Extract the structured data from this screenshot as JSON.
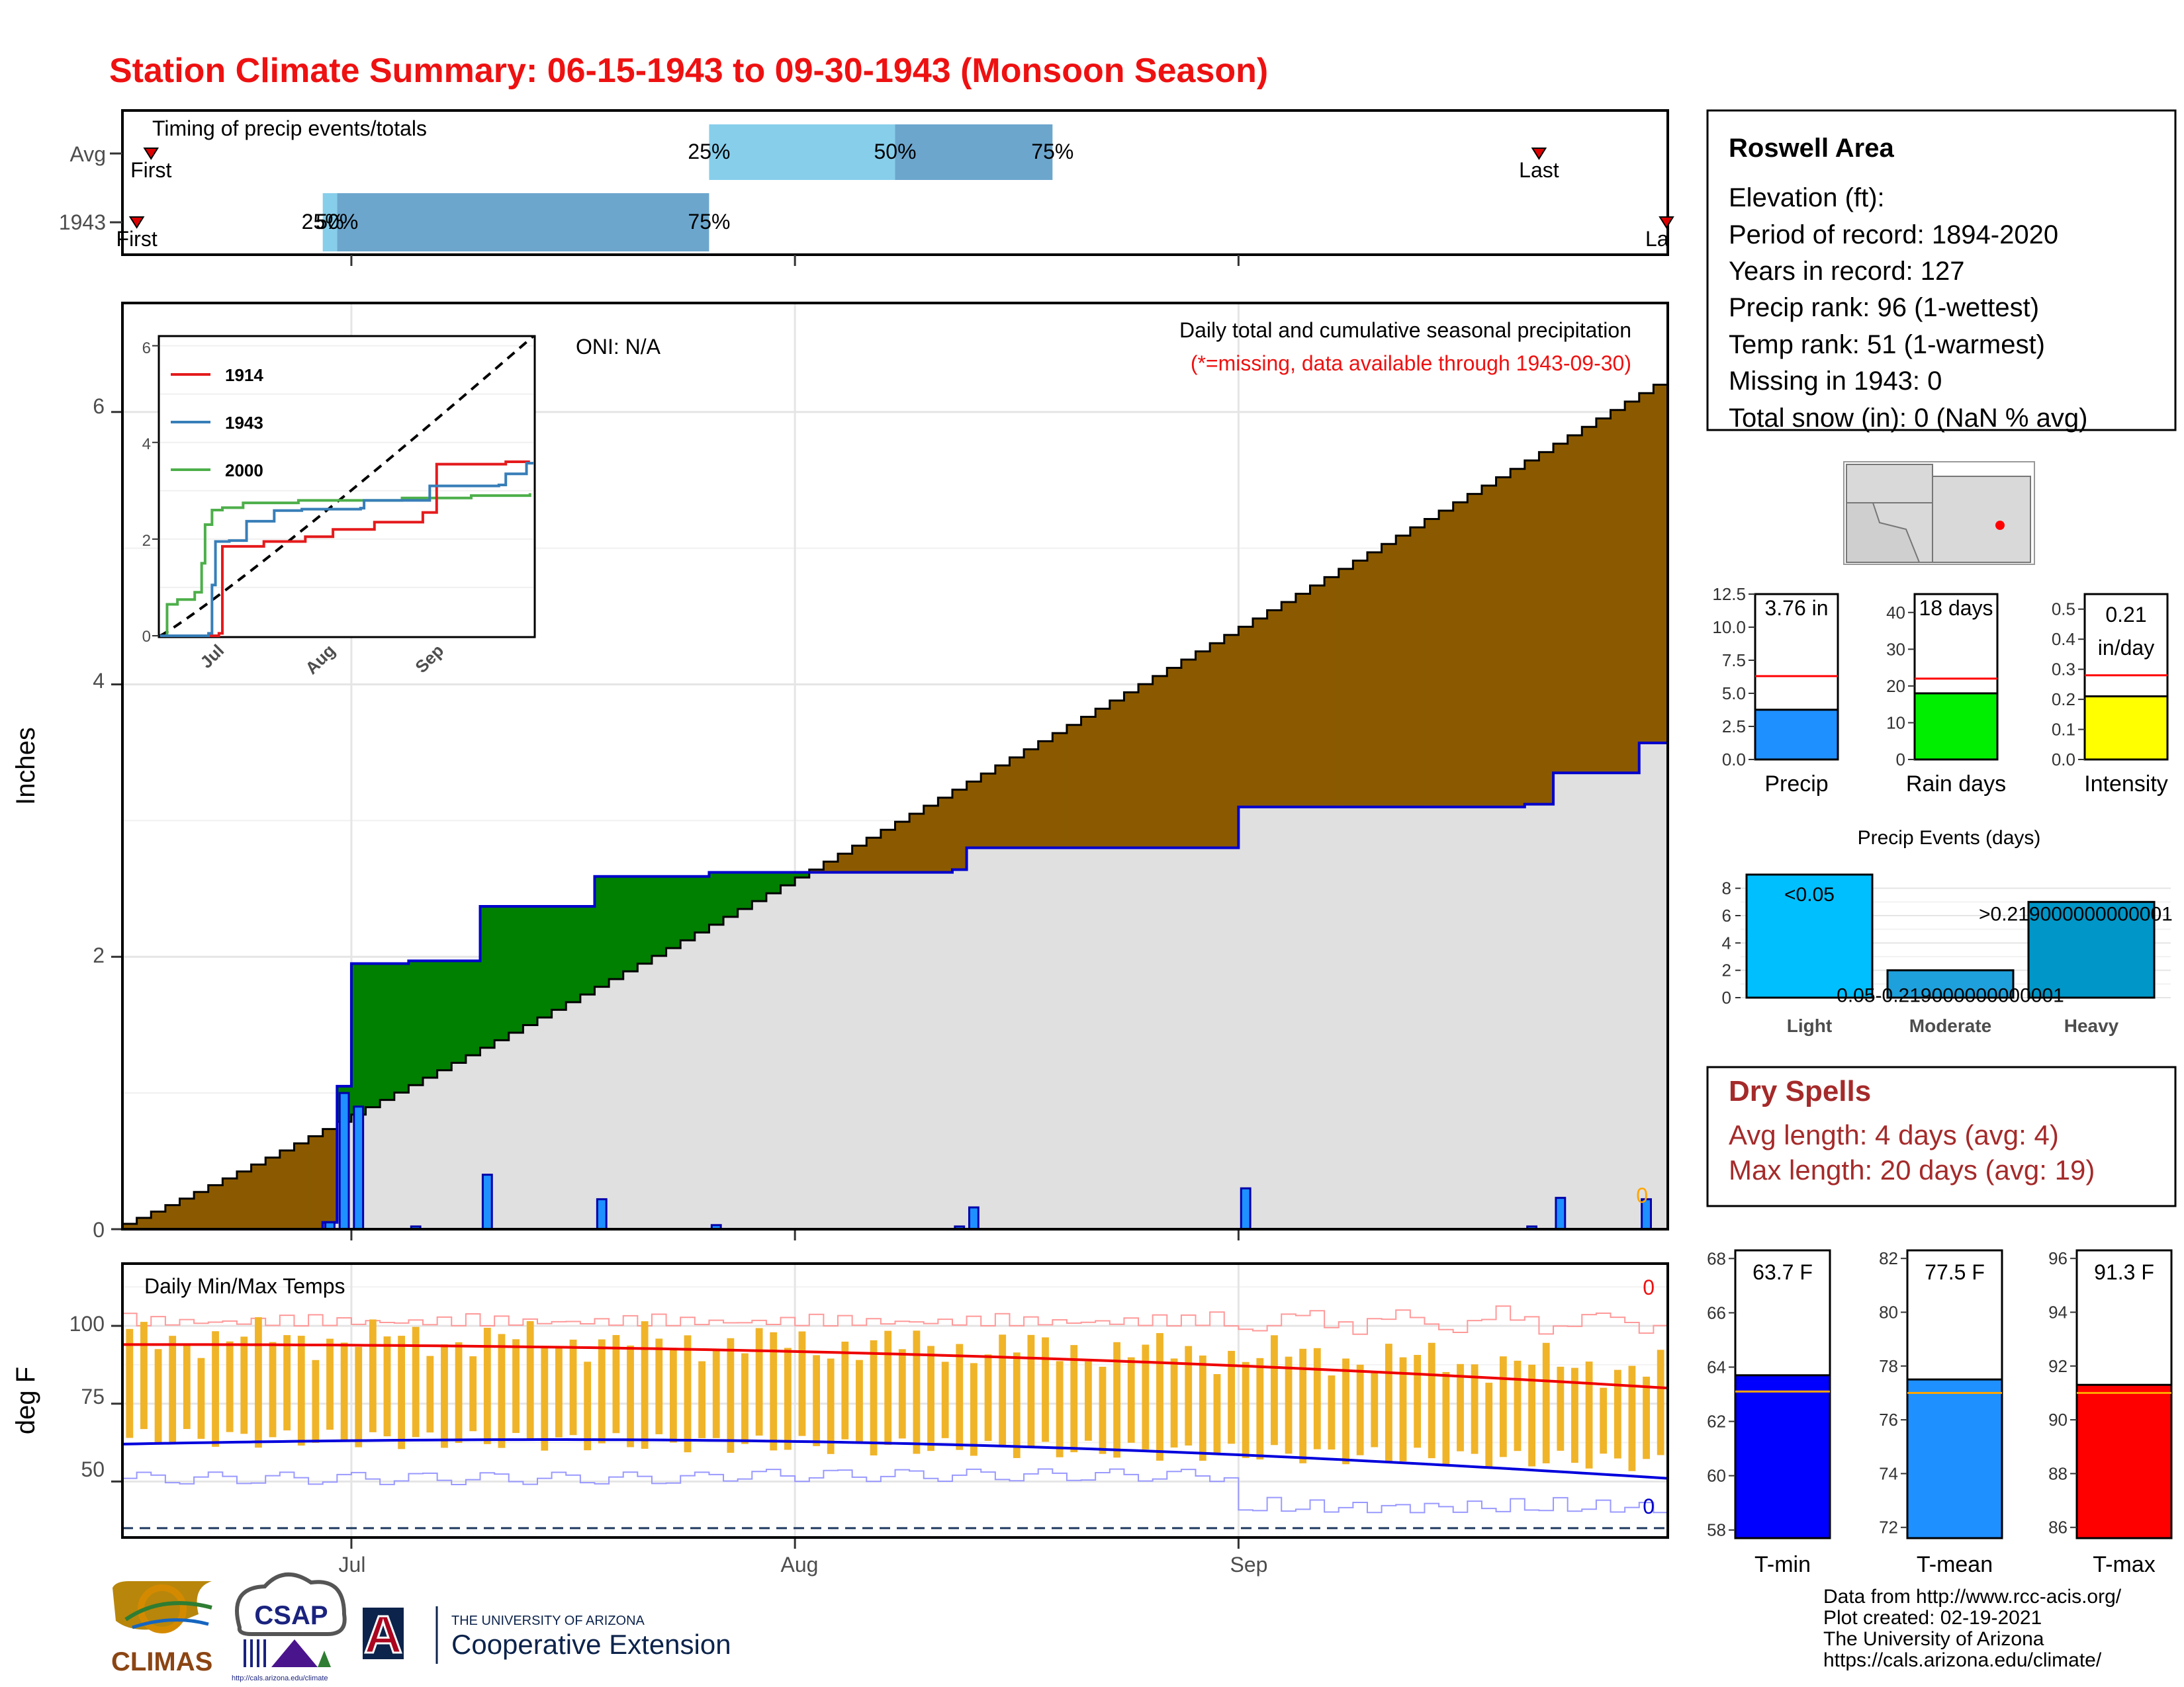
{
  "title": "Station Climate Summary: 06-15-1943 to 09-30-1943 (Monsoon Season)",
  "timing": {
    "label": "Timing of precip events/totals",
    "rows": [
      {
        "name": "Avg",
        "first_label": "First",
        "last_label": "Last",
        "q25": "25%",
        "q50": "50%",
        "q75": "75%"
      },
      {
        "name": "1943",
        "first_label": "First",
        "last_label": "La",
        "q25": "25%",
        "q50": "50%",
        "q75": "75%"
      }
    ],
    "avg_dates": {
      "first": "1943-06-17",
      "q25": "1943-07-26",
      "q50": "1943-08-08",
      "q75": "1943-08-19",
      "last": "1943-09-22"
    },
    "y1943_dates": {
      "first": "1943-06-16",
      "q25": "1943-06-29",
      "q50": "1943-06-30",
      "q75": "1943-07-26",
      "last": "1943-09-30"
    }
  },
  "main": {
    "ylabel": "Inches",
    "oni": "ONI: N/A",
    "note1": "Daily total and cumulative seasonal precipitation",
    "note2": "(*=missing, data available through 1943-09-30)",
    "zero_label": "0",
    "yticks": [
      "0",
      "2",
      "4",
      "6"
    ],
    "xticks": [
      "Jul",
      "Aug",
      "Sep"
    ]
  },
  "inset": {
    "legend": [
      "1914",
      "1943",
      "2000"
    ],
    "colors": [
      "#e41a1c",
      "#377eb8",
      "#4daf4a"
    ],
    "yticks": [
      "0",
      "2",
      "4",
      "6"
    ],
    "xticks": [
      "Jul",
      "Aug",
      "Sep"
    ]
  },
  "temps": {
    "label": "Daily Min/Max Temps",
    "ylabel": "deg F",
    "yticks": [
      "50",
      "75",
      "100"
    ],
    "xticks": [
      "Jul",
      "Aug",
      "Sep"
    ],
    "max_count": "0",
    "min_count": "0"
  },
  "info": {
    "station": "Roswell Area",
    "lines": [
      "Elevation (ft):",
      "Period of record: 1894-2020",
      "Years in record: 127",
      "Precip rank: 96 (1-wettest)",
      "Temp rank: 51 (1-warmest)",
      "Missing in 1943: 0",
      "Total snow (in): 0 (NaN % avg)"
    ]
  },
  "gauges": [
    {
      "label": "Precip",
      "value_text": "3.76 in",
      "value": 3.76,
      "avg": 6.3,
      "max": 12.5,
      "ticks": [
        "0.0",
        "2.5",
        "5.0",
        "7.5",
        "10.0",
        "12.5"
      ],
      "color": "#1e90ff"
    },
    {
      "label": "Rain days",
      "value_text": "18 days",
      "value": 18,
      "avg": 22,
      "max": 45,
      "ticks": [
        "0",
        "10",
        "20",
        "30",
        "40"
      ],
      "color": "#00ee00"
    },
    {
      "label": "Intensity",
      "value_text": "0.21 in/day",
      "value_line1": "0.21",
      "value_line2": "in/day",
      "value": 0.21,
      "avg": 0.28,
      "max": 0.55,
      "ticks": [
        "0.0",
        "0.1",
        "0.2",
        "0.3",
        "0.4",
        "0.5"
      ],
      "color": "#ffff00"
    }
  ],
  "events": {
    "title": "Precip Events (days)",
    "yticks": [
      "0",
      "2",
      "4",
      "6",
      "8"
    ],
    "bars": [
      {
        "cat": "Light",
        "label": "<0.05",
        "value": 9,
        "color": "#00bfff"
      },
      {
        "cat": "Moderate",
        "label": "0.05-0.219000000000001",
        "value": 2,
        "color": "#1ea0dc"
      },
      {
        "cat": "Heavy",
        "label": ">0.219000000000001",
        "value": 7,
        "color": "#0096c8"
      }
    ]
  },
  "dry": {
    "title": "Dry Spells",
    "line1": "Avg length: 4 days (avg: 4)",
    "line2": "Max length: 20 days (avg: 19)"
  },
  "tgauges": [
    {
      "label": "T-min",
      "value_text": "63.7 F",
      "value": 63.7,
      "avg": 63.1,
      "min": 57.7,
      "max": 68.3,
      "ticks": [
        "58",
        "60",
        "62",
        "64",
        "66",
        "68"
      ],
      "color": "#0000ff"
    },
    {
      "label": "T-mean",
      "value_text": "77.5 F",
      "value": 77.5,
      "avg": 77.0,
      "min": 71.6,
      "max": 82.3,
      "ticks": [
        "72",
        "74",
        "76",
        "78",
        "80",
        "82"
      ],
      "color": "#1e90ff"
    },
    {
      "label": "T-max",
      "value_text": "91.3 F",
      "value": 91.3,
      "avg": 91.0,
      "min": 85.6,
      "max": 96.3,
      "ticks": [
        "86",
        "88",
        "90",
        "92",
        "94",
        "96"
      ],
      "color": "#ff0000"
    }
  ],
  "footer": [
    "Data from http://www.rcc-acis.org/",
    "Plot created: 02-19-2021",
    "The University of Arizona",
    "https://cals.arizona.edu/climate/"
  ],
  "logos": {
    "climas": "CLIMAS",
    "csap": "CSAP",
    "csap_url": "http://cals.arizona.edu/climate",
    "ua_small": "THE UNIVERSITY OF ARIZONA",
    "ua_big": "Cooperative Extension",
    "ua_letter": "A"
  },
  "chart_data": {
    "type": "area",
    "x_start": "1943-06-15",
    "x_end": "1943-09-30",
    "ylim": [
      0,
      6.8
    ],
    "ylabel": "Inches",
    "series": [
      {
        "name": "1943",
        "daily_precip": [
          {
            "date": "1943-06-29",
            "value": 0.05
          },
          {
            "date": "1943-06-30",
            "value": 1.0
          },
          {
            "date": "1943-07-01",
            "value": 0.9
          },
          {
            "date": "1943-07-05",
            "value": 0.02
          },
          {
            "date": "1943-07-10",
            "value": 0.4
          },
          {
            "date": "1943-07-18",
            "value": 0.22
          },
          {
            "date": "1943-07-26",
            "value": 0.03
          },
          {
            "date": "1943-08-12",
            "value": 0.02
          },
          {
            "date": "1943-08-13",
            "value": 0.16
          },
          {
            "date": "1943-09-01",
            "value": 0.3
          },
          {
            "date": "1943-09-21",
            "value": 0.02
          },
          {
            "date": "1943-09-23",
            "value": 0.23
          },
          {
            "date": "1943-09-29",
            "value": 0.22
          }
        ]
      }
    ],
    "normal_cumulative_end": 6.2,
    "temps": {
      "record_high_approx": 104,
      "record_low_approx": 36,
      "normal_max_start": 94,
      "normal_max_end": 80,
      "normal_min_start": 62,
      "normal_min_end": 51,
      "dashed_line": 35
    }
  }
}
